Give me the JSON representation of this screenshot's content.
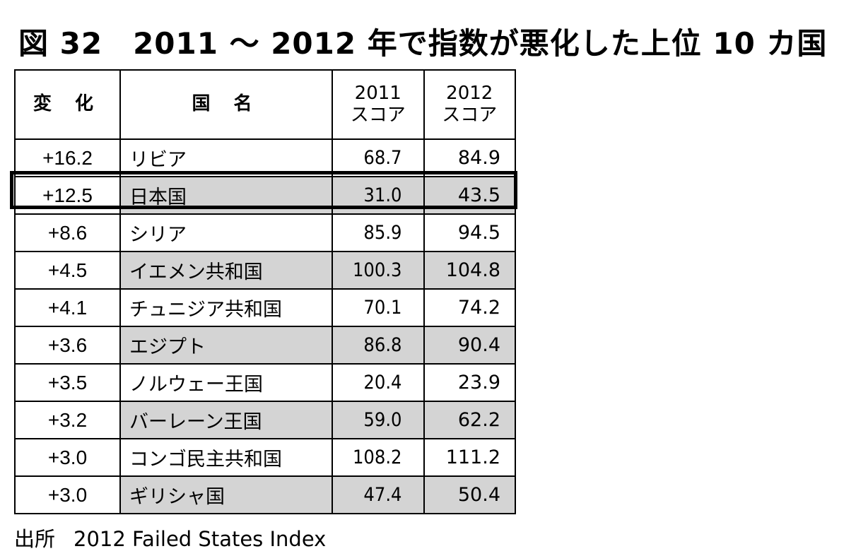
{
  "title": "図 32　2011 ～ 2012 年で指数が悪化した上位 10 カ国",
  "table": {
    "headers": {
      "change": "変 化",
      "country": "国 名",
      "score2011": "2011\nスコア",
      "score2012": "2012\nスコア"
    },
    "rows": [
      {
        "change": "+16.2",
        "country": "リビア",
        "s2011": "68.7",
        "s2012": "84.9",
        "shaded": false
      },
      {
        "change": "+12.5",
        "country": "日本国",
        "s2011": "31.0",
        "s2012": "43.5",
        "shaded": true,
        "highlighted": true
      },
      {
        "change": "+8.6",
        "country": "シリア",
        "s2011": "85.9",
        "s2012": "94.5",
        "shaded": false
      },
      {
        "change": "+4.5",
        "country": "イエメン共和国",
        "s2011": "100.3",
        "s2012": "104.8",
        "shaded": true
      },
      {
        "change": "+4.1",
        "country": "チュニジア共和国",
        "s2011": "70.1",
        "s2012": "74.2",
        "shaded": false
      },
      {
        "change": "+3.6",
        "country": "エジプト",
        "s2011": "86.8",
        "s2012": "90.4",
        "shaded": true
      },
      {
        "change": "+3.5",
        "country": "ノルウェー王国",
        "s2011": "20.4",
        "s2012": "23.9",
        "shaded": false
      },
      {
        "change": "+3.2",
        "country": "バーレーン王国",
        "s2011": "59.0",
        "s2012": "62.2",
        "shaded": true
      },
      {
        "change": "+3.0",
        "country": "コンゴ民主共和国",
        "s2011": "108.2",
        "s2012": "111.2",
        "shaded": false
      },
      {
        "change": "+3.0",
        "country": "ギリシャ国",
        "s2011": "47.4",
        "s2012": "50.4",
        "shaded": true
      }
    ]
  },
  "source": {
    "label": "出所",
    "text": "2012 Failed States Index"
  },
  "colors": {
    "row_shade": "#d4d4d4",
    "border": "#000000"
  }
}
